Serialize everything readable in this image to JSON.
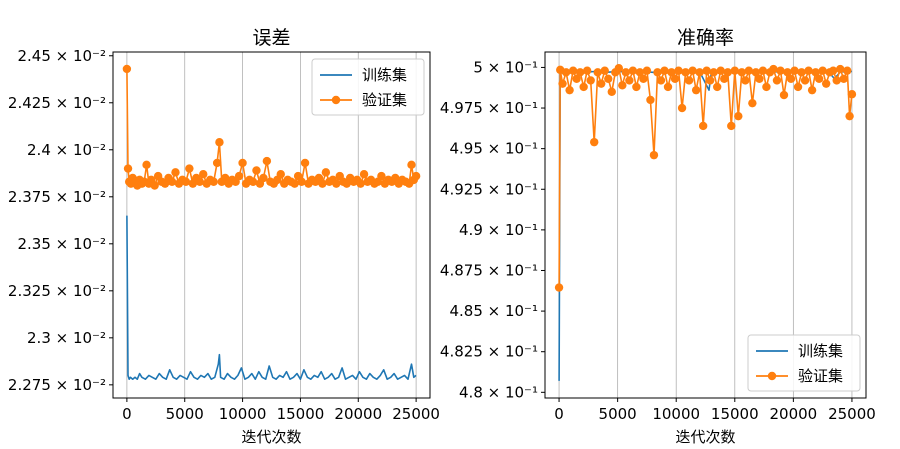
{
  "chart_data": [
    {
      "type": "line",
      "title": "误差",
      "xlabel": "迭代次数",
      "ylabel": "",
      "xlim": [
        -1200,
        26200
      ],
      "ylim": [
        0.02268,
        0.02452
      ],
      "x_ticks": [
        0,
        5000,
        10000,
        15000,
        20000,
        25000
      ],
      "x_tick_labels": [
        "0",
        "5000",
        "10000",
        "15000",
        "20000",
        "25000"
      ],
      "y_ticks": [
        0.02275,
        0.023,
        0.02325,
        0.0235,
        0.02375,
        0.024,
        0.02425,
        0.0245
      ],
      "y_tick_labels": [
        "2.275 × 10⁻²",
        "2.3 × 10⁻²",
        "2.325 × 10⁻²",
        "2.35 × 10⁻²",
        "2.375 × 10⁻²",
        "2.4 × 10⁻²",
        "2.425 × 10⁻²",
        "2.45 × 10⁻²"
      ],
      "grid": "x-only",
      "legend_position": "top-right",
      "series": [
        {
          "name": "训练集",
          "color": "#1f77b4",
          "marker": false,
          "x": [
            0,
            100,
            200,
            300,
            500,
            700,
            900,
            1100,
            1300,
            1600,
            1900,
            2200,
            2500,
            2800,
            3100,
            3400,
            3700,
            4000,
            4300,
            4600,
            4900,
            5200,
            5500,
            5800,
            6100,
            6400,
            6700,
            7000,
            7300,
            7600,
            7900,
            8000,
            8100,
            8400,
            8700,
            9000,
            9300,
            9600,
            9900,
            10200,
            10500,
            10800,
            11100,
            11400,
            11700,
            12000,
            12300,
            12600,
            12900,
            13200,
            13500,
            13800,
            14100,
            14400,
            14700,
            15000,
            15300,
            15600,
            15900,
            16200,
            16500,
            16800,
            17100,
            17400,
            17700,
            18000,
            18300,
            18600,
            18900,
            19200,
            19500,
            19800,
            20100,
            20400,
            20700,
            21000,
            21300,
            21600,
            21900,
            22200,
            22500,
            22800,
            23100,
            23400,
            23700,
            24000,
            24300,
            24600,
            24800,
            25000
          ],
          "y": [
            0.02365,
            0.0228,
            0.02278,
            0.02279,
            0.02278,
            0.02279,
            0.02278,
            0.02281,
            0.02279,
            0.02278,
            0.0228,
            0.02279,
            0.02278,
            0.02281,
            0.02279,
            0.02278,
            0.02283,
            0.02279,
            0.02278,
            0.0228,
            0.02279,
            0.02278,
            0.02282,
            0.02279,
            0.02278,
            0.0228,
            0.02279,
            0.02281,
            0.02278,
            0.02279,
            0.02286,
            0.02291,
            0.02279,
            0.02278,
            0.02281,
            0.02279,
            0.02278,
            0.0228,
            0.02284,
            0.02278,
            0.02279,
            0.02281,
            0.02278,
            0.02282,
            0.02279,
            0.02278,
            0.02285,
            0.02279,
            0.02278,
            0.0228,
            0.02279,
            0.02282,
            0.02278,
            0.02279,
            0.02281,
            0.02278,
            0.02283,
            0.02279,
            0.02278,
            0.0228,
            0.02279,
            0.02282,
            0.02278,
            0.02279,
            0.02281,
            0.02278,
            0.02279,
            0.02284,
            0.02278,
            0.02279,
            0.0228,
            0.02278,
            0.02282,
            0.02279,
            0.02278,
            0.02281,
            0.02279,
            0.02278,
            0.0228,
            0.02283,
            0.02278,
            0.02279,
            0.02281,
            0.02278,
            0.02279,
            0.0228,
            0.02278,
            0.02286,
            0.02279,
            0.0228
          ]
        },
        {
          "name": "验证集",
          "color": "#ff7f0e",
          "marker": true,
          "x": [
            0,
            100,
            200,
            350,
            500,
            700,
            900,
            1100,
            1300,
            1500,
            1700,
            1900,
            2100,
            2400,
            2700,
            3000,
            3300,
            3600,
            3900,
            4200,
            4500,
            4800,
            5100,
            5400,
            5700,
            6000,
            6300,
            6600,
            6900,
            7200,
            7500,
            7800,
            8000,
            8200,
            8500,
            8800,
            9100,
            9400,
            9700,
            10000,
            10300,
            10600,
            10900,
            11200,
            11500,
            11800,
            12100,
            12400,
            12700,
            13000,
            13300,
            13600,
            13900,
            14200,
            14500,
            14800,
            15100,
            15400,
            15700,
            16000,
            16300,
            16600,
            16900,
            17200,
            17500,
            17800,
            18100,
            18400,
            18700,
            19000,
            19300,
            19600,
            19900,
            20200,
            20500,
            20800,
            21100,
            21400,
            21700,
            22000,
            22300,
            22600,
            22900,
            23200,
            23500,
            23800,
            24100,
            24400,
            24600,
            24800,
            25000
          ],
          "y": [
            0.02443,
            0.0239,
            0.02383,
            0.02382,
            0.02385,
            0.02383,
            0.02381,
            0.02384,
            0.02382,
            0.02383,
            0.02392,
            0.02382,
            0.02384,
            0.02381,
            0.02386,
            0.02383,
            0.02382,
            0.02385,
            0.02383,
            0.02388,
            0.02382,
            0.02384,
            0.02383,
            0.0239,
            0.02382,
            0.02385,
            0.02383,
            0.02387,
            0.02382,
            0.02384,
            0.02383,
            0.02393,
            0.02404,
            0.02383,
            0.02385,
            0.02382,
            0.02384,
            0.02383,
            0.02386,
            0.02393,
            0.02382,
            0.02384,
            0.02383,
            0.02389,
            0.02382,
            0.02385,
            0.02394,
            0.02383,
            0.02382,
            0.02384,
            0.02387,
            0.02382,
            0.02384,
            0.02383,
            0.02382,
            0.02386,
            0.02383,
            0.02393,
            0.02382,
            0.02384,
            0.02383,
            0.02385,
            0.02382,
            0.02388,
            0.02383,
            0.02384,
            0.02382,
            0.02386,
            0.02383,
            0.02382,
            0.02385,
            0.02383,
            0.02384,
            0.02382,
            0.02387,
            0.02383,
            0.02384,
            0.02382,
            0.02383,
            0.02386,
            0.02382,
            0.02384,
            0.02383,
            0.02385,
            0.02382,
            0.02384,
            0.02383,
            0.02382,
            0.02392,
            0.02384,
            0.02386
          ]
        }
      ]
    },
    {
      "type": "line",
      "title": "准确率",
      "xlabel": "迭代次数",
      "ylabel": "",
      "xlim": [
        -1200,
        26200
      ],
      "ylim": [
        0.47965,
        0.50095
      ],
      "x_ticks": [
        0,
        5000,
        10000,
        15000,
        20000,
        25000
      ],
      "x_tick_labels": [
        "0",
        "5000",
        "10000",
        "15000",
        "20000",
        "25000"
      ],
      "y_ticks": [
        0.48,
        0.4825,
        0.485,
        0.4875,
        0.49,
        0.4925,
        0.495,
        0.4975,
        0.5
      ],
      "y_tick_labels": [
        "4.8 × 10⁻¹",
        "4.825 × 10⁻¹",
        "4.85 × 10⁻¹",
        "4.875 × 10⁻¹",
        "4.9 × 10⁻¹",
        "4.925 × 10⁻¹",
        "4.95 × 10⁻¹",
        "4.975 × 10⁻¹",
        "5 × 10⁻¹"
      ],
      "grid": "x-only",
      "legend_position": "lower-right",
      "series": [
        {
          "name": "训练集",
          "color": "#1f77b4",
          "marker": false,
          "x": [
            0,
            100,
            300,
            600,
            1000,
            1500,
            2000,
            3000,
            4000,
            5000,
            6000,
            7000,
            8000,
            9000,
            10000,
            11000,
            12000,
            12800,
            13000,
            13500,
            14000,
            15000,
            16000,
            17000,
            18000,
            19000,
            20000,
            21000,
            22000,
            23000,
            23500,
            24000,
            25000
          ],
          "y": [
            0.4807,
            0.4997,
            0.49965,
            0.49975,
            0.4997,
            0.49975,
            0.49968,
            0.49975,
            0.4997,
            0.49975,
            0.49972,
            0.49975,
            0.4997,
            0.49974,
            0.49975,
            0.4997,
            0.49975,
            0.4986,
            0.4997,
            0.49975,
            0.4997,
            0.49975,
            0.49972,
            0.49975,
            0.4997,
            0.49975,
            0.49972,
            0.49975,
            0.4997,
            0.49975,
            0.4993,
            0.49972,
            0.49975
          ]
        },
        {
          "name": "验证集",
          "color": "#ff7f0e",
          "marker": true,
          "x": [
            0,
            100,
            300,
            600,
            900,
            1200,
            1500,
            1800,
            2100,
            2400,
            2700,
            3000,
            3300,
            3600,
            3900,
            4200,
            4500,
            4800,
            5100,
            5400,
            5700,
            6000,
            6300,
            6600,
            6900,
            7200,
            7500,
            7800,
            8100,
            8400,
            8700,
            9000,
            9300,
            9600,
            9900,
            10200,
            10500,
            10800,
            11100,
            11400,
            11700,
            12000,
            12300,
            12600,
            12900,
            13200,
            13500,
            13800,
            14100,
            14400,
            14700,
            15000,
            15300,
            15600,
            15900,
            16200,
            16500,
            16800,
            17100,
            17400,
            17700,
            18000,
            18300,
            18600,
            18900,
            19200,
            19500,
            19800,
            20100,
            20400,
            20700,
            21000,
            21300,
            21600,
            21900,
            22200,
            22500,
            22800,
            23100,
            23400,
            23700,
            24000,
            24300,
            24600,
            24800,
            25000
          ],
          "y": [
            0.48645,
            0.49985,
            0.499,
            0.4997,
            0.4986,
            0.4998,
            0.4993,
            0.4997,
            0.4988,
            0.4998,
            0.4992,
            0.4954,
            0.4997,
            0.499,
            0.4998,
            0.4993,
            0.4985,
            0.4997,
            0.49995,
            0.4989,
            0.4997,
            0.4992,
            0.4998,
            0.4988,
            0.4997,
            0.4993,
            0.4998,
            0.498,
            0.4946,
            0.4997,
            0.4992,
            0.4998,
            0.4988,
            0.4997,
            0.4993,
            0.4998,
            0.4975,
            0.4997,
            0.4992,
            0.4998,
            0.4986,
            0.4997,
            0.4964,
            0.4998,
            0.4992,
            0.4997,
            0.4988,
            0.4998,
            0.4993,
            0.4997,
            0.4964,
            0.4998,
            0.497,
            0.4997,
            0.4992,
            0.4998,
            0.4978,
            0.4997,
            0.4993,
            0.4998,
            0.4988,
            0.4997,
            0.4999,
            0.4992,
            0.4998,
            0.4983,
            0.4997,
            0.4993,
            0.4998,
            0.4988,
            0.4997,
            0.4992,
            0.4998,
            0.4986,
            0.4997,
            0.4993,
            0.4998,
            0.499,
            0.4997,
            0.4998,
            0.4992,
            0.4999,
            0.4993,
            0.4998,
            0.497,
            0.49835
          ]
        }
      ]
    }
  ]
}
